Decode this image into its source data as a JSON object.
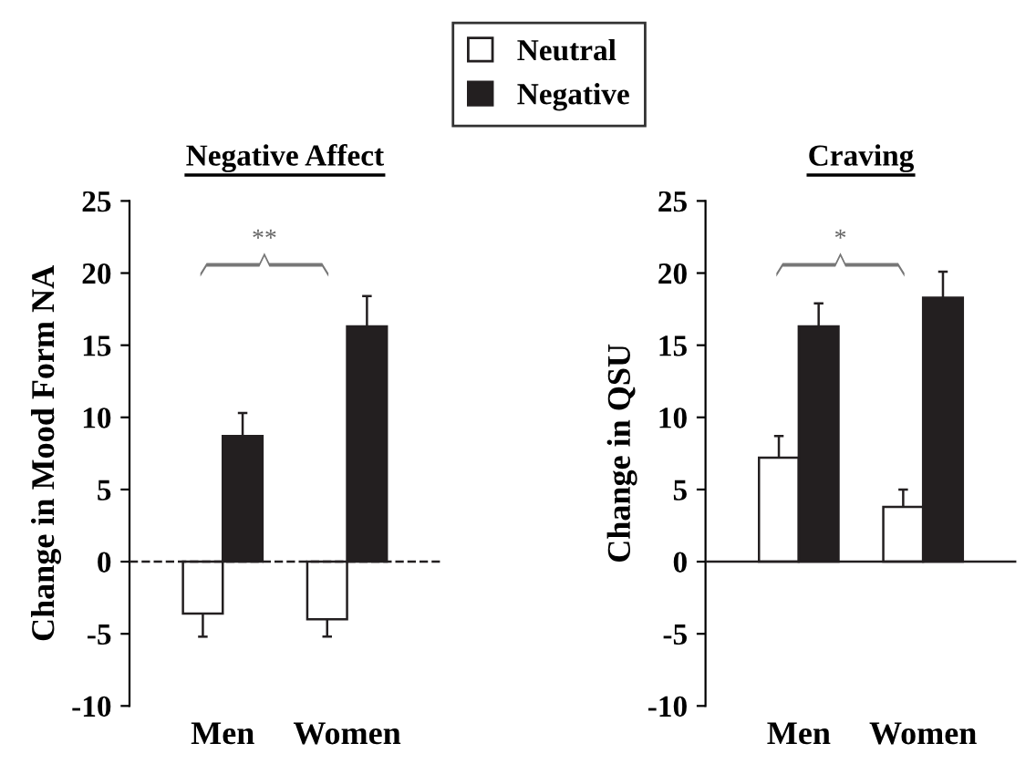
{
  "chart_data": [
    {
      "type": "bar",
      "title": "Negative Affect",
      "ylabel": "Change in Mood Form NA",
      "categories": [
        "Men",
        "Women"
      ],
      "ylim": [
        -10,
        25
      ],
      "yticks": [
        -10,
        -5,
        0,
        5,
        10,
        15,
        20,
        25
      ],
      "legend": "top",
      "grid": false,
      "series": [
        {
          "name": "Neutral",
          "color": "#ffffff",
          "values": [
            -3.6,
            -4.0
          ],
          "errors": [
            [
              -5.2,
              -3.6
            ],
            [
              -5.2,
              -4.0
            ]
          ]
        },
        {
          "name": "Negative",
          "color": "#231f20",
          "values": [
            8.7,
            16.3
          ],
          "errors": [
            [
              8.7,
              10.3
            ],
            [
              16.3,
              18.4
            ]
          ]
        }
      ],
      "ref_lines": [
        {
          "axis": "y",
          "value": 0,
          "line_style": "dashed"
        }
      ],
      "annotations": [
        "**"
      ]
    },
    {
      "type": "bar",
      "title": "Craving",
      "ylabel": "Change in QSU",
      "categories": [
        "Men",
        "Women"
      ],
      "ylim": [
        -10,
        25
      ],
      "yticks": [
        -10,
        -5,
        0,
        5,
        10,
        15,
        20,
        25
      ],
      "grid": false,
      "series": [
        {
          "color": "#ffffff",
          "values": [
            7.2,
            3.8
          ],
          "errors": [
            [
              7.2,
              8.7
            ],
            [
              3.8,
              5.0
            ]
          ]
        },
        {
          "color": "#231f20",
          "values": [
            16.3,
            18.3
          ],
          "errors": [
            [
              16.3,
              17.9
            ],
            [
              18.3,
              20.1
            ]
          ]
        }
      ],
      "ref_lines": [
        {
          "axis": "y",
          "value": 0,
          "line_style": "solid"
        }
      ],
      "annotations": [
        "*"
      ]
    }
  ]
}
